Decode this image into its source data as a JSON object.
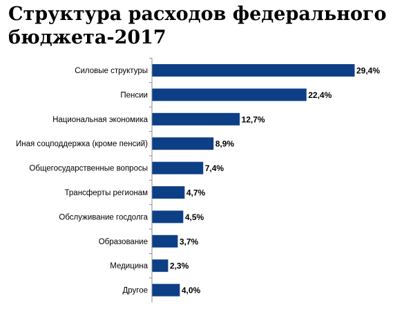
{
  "chart_data": {
    "type": "bar",
    "orientation": "horizontal",
    "title": "Структура расходов федерального бюджета-2017",
    "categories": [
      "Силовые структуры",
      "Пенсии",
      "Национальная экономика",
      "Иная соцподдержка (кроме пенсий)",
      "Общегосударственные вопросы",
      "Трансферты регионам",
      "Обслуживание госдолга",
      "Образование",
      "Медицина",
      "Другое"
    ],
    "values": [
      29.4,
      22.4,
      12.7,
      8.9,
      7.4,
      4.7,
      4.5,
      3.7,
      2.3,
      4.0
    ],
    "value_labels": [
      "29,4%",
      "22,4%",
      "12,7%",
      "8,9%",
      "7,4%",
      "4,7%",
      "4,5%",
      "3,7%",
      "2,3%",
      "4,0%"
    ],
    "bar_color": "#0d3f86",
    "xlim": [
      0,
      29.4
    ],
    "grid": false,
    "legend": "none"
  }
}
